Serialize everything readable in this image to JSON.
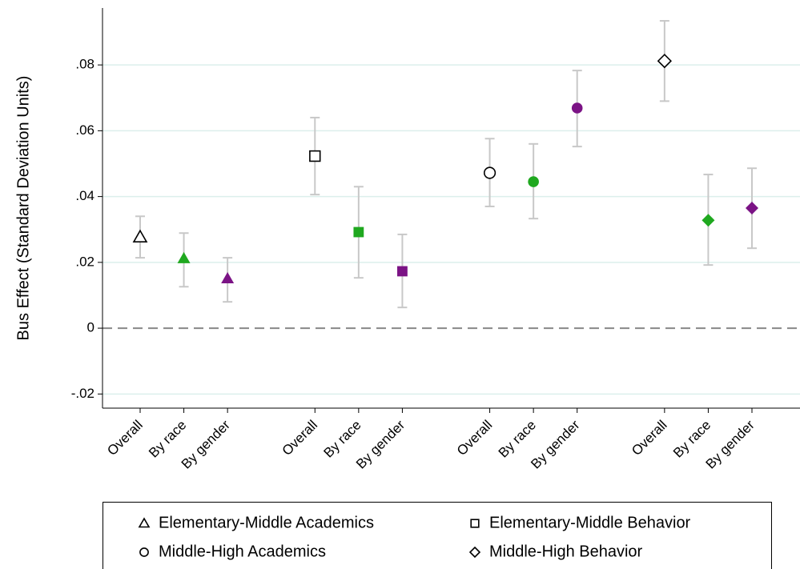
{
  "chart_data": {
    "type": "errorbar",
    "y_label": "Bus Effect (Standard Deviation Units)",
    "categories": [
      "Overall",
      "By race",
      "By gender",
      null,
      "Overall",
      "By race",
      "By gender",
      null,
      "Overall",
      "By race",
      "By gender",
      null,
      "Overall",
      "By race",
      "By gender"
    ],
    "point_colors": [
      "#000000",
      "#1fa81f",
      "#7b1385",
      null,
      "#000000",
      "#1fa81f",
      "#7b1385",
      null,
      "#000000",
      "#1fa81f",
      "#7b1385",
      null,
      "#000000",
      "#1fa81f",
      "#7b1385"
    ],
    "hollow": [
      true,
      false,
      false,
      null,
      true,
      false,
      false,
      null,
      true,
      false,
      false,
      null,
      true,
      false,
      false
    ],
    "series": [
      {
        "name": "Elementary-Middle Academics",
        "marker": "triangle",
        "values": [
          0.0277,
          0.0212,
          0.0151,
          null,
          null,
          null,
          null,
          null,
          null,
          null,
          null,
          null,
          null,
          null,
          null
        ],
        "lower": [
          0.0214,
          0.0126,
          0.008,
          null,
          null,
          null,
          null,
          null,
          null,
          null,
          null,
          null,
          null,
          null,
          null
        ],
        "upper": [
          0.034,
          0.0289,
          0.0214,
          null,
          null,
          null,
          null,
          null,
          null,
          null,
          null,
          null,
          null,
          null,
          null
        ]
      },
      {
        "name": "Elementary-Middle Behavior",
        "marker": "square",
        "values": [
          null,
          null,
          null,
          null,
          0.0523,
          0.0292,
          0.0173,
          null,
          null,
          null,
          null,
          null,
          null,
          null,
          null
        ],
        "lower": [
          null,
          null,
          null,
          null,
          0.0406,
          0.0153,
          0.0063,
          null,
          null,
          null,
          null,
          null,
          null,
          null,
          null
        ],
        "upper": [
          null,
          null,
          null,
          null,
          0.064,
          0.043,
          0.0285,
          null,
          null,
          null,
          null,
          null,
          null,
          null,
          null
        ]
      },
      {
        "name": "Middle-High Academics",
        "marker": "circle",
        "values": [
          null,
          null,
          null,
          null,
          null,
          null,
          null,
          null,
          0.0472,
          0.0445,
          0.0669,
          null,
          null,
          null,
          null
        ],
        "lower": [
          null,
          null,
          null,
          null,
          null,
          null,
          null,
          null,
          0.037,
          0.0333,
          0.0552,
          null,
          null,
          null,
          null
        ],
        "upper": [
          null,
          null,
          null,
          null,
          null,
          null,
          null,
          null,
          0.0576,
          0.056,
          0.0783,
          null,
          null,
          null,
          null
        ]
      },
      {
        "name": "Middle-High Behavior",
        "marker": "diamond",
        "values": [
          null,
          null,
          null,
          null,
          null,
          null,
          null,
          null,
          null,
          null,
          null,
          null,
          0.0812,
          0.0328,
          0.0365
        ],
        "lower": [
          null,
          null,
          null,
          null,
          null,
          null,
          null,
          null,
          null,
          null,
          null,
          null,
          0.069,
          0.0192,
          0.0243
        ],
        "upper": [
          null,
          null,
          null,
          null,
          null,
          null,
          null,
          null,
          null,
          null,
          null,
          null,
          0.0934,
          0.0467,
          0.0486
        ]
      }
    ],
    "error_color": "#c8c8c8",
    "grid_color": "#dcefec",
    "zero_line": true,
    "ylim": [
      -0.0243,
      0.0973
    ],
    "yticks": [
      {
        "value": -0.02,
        "label": "-.02"
      },
      0,
      {
        "value": 0.02,
        "label": ".02"
      },
      {
        "value": 0.04,
        "label": ".04"
      },
      {
        "value": 0.06,
        "label": ".06"
      },
      {
        "value": 0.08,
        "label": ".08"
      }
    ],
    "grid": true,
    "legend": "bottom"
  }
}
